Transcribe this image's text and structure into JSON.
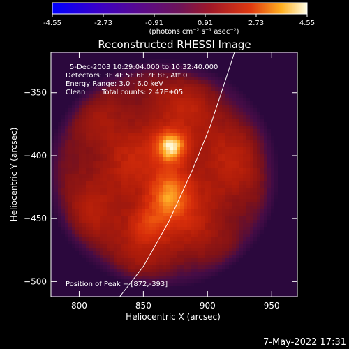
{
  "colorbar": {
    "ticks": [
      "-4.55",
      "-2.73",
      "-0.91",
      "0.91",
      "2.73",
      "4.55"
    ],
    "range": [
      -4.55,
      4.55
    ],
    "units": "(photons cm⁻² s⁻¹ asec⁻²)"
  },
  "title": "Reconstructed RHESSI Image",
  "info": {
    "time": "5-Dec-2003 10:29:04.000 to 10:32:40.000",
    "detectors": "Detectors: 3F 4F 5F 6F 7F 8F, Att 0",
    "energy": "Energy Range: 3.0 - 6.0 keV",
    "method": "Clean",
    "counts": "Total counts: 2.47E+05"
  },
  "peak_text": "Position of Peak = [872,-393]",
  "timestamp": "7-May-2022 17:31",
  "chart_data": {
    "type": "heatmap",
    "title": "Reconstructed RHESSI Image",
    "xlabel": "Heliocentric X (arcsec)",
    "ylabel": "Heliocentric Y (arcsec)",
    "xlim": [
      778,
      970
    ],
    "ylim": [
      -512,
      -318
    ],
    "xticks": [
      800,
      850,
      900,
      950
    ],
    "yticks": [
      -350,
      -400,
      -450,
      -500
    ],
    "colorscale": "hot-red",
    "sources": [
      {
        "name": "primary",
        "x": 872,
        "y": -393,
        "rel_intensity": 1.0
      },
      {
        "name": "secondary-1",
        "x": 868,
        "y": -435,
        "rel_intensity": 0.55
      },
      {
        "name": "secondary-2",
        "x": 852,
        "y": -455,
        "rel_intensity": 0.5
      },
      {
        "name": "secondary-3",
        "x": 875,
        "y": -418,
        "rel_intensity": 0.35
      }
    ],
    "limb_curve": [
      [
        827,
        -518
      ],
      [
        850,
        -488
      ],
      [
        870,
        -452
      ],
      [
        888,
        -412
      ],
      [
        902,
        -377
      ],
      [
        914,
        -340
      ],
      [
        921,
        -318
      ]
    ],
    "peak": [
      872,
      -393
    ]
  }
}
